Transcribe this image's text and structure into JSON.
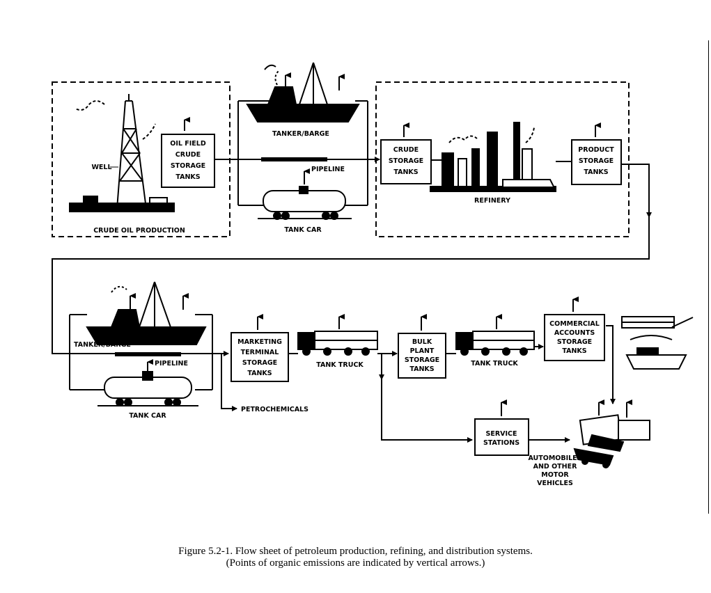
{
  "diagram": {
    "sections": {
      "crude_oil_production": "CRUDE OIL PRODUCTION",
      "refinery": "REFINERY"
    },
    "labels": {
      "well": "WELL",
      "oil_field_crude_storage_tanks": [
        "OIL FIELD",
        "CRUDE",
        "STORAGE",
        "TANKS"
      ],
      "tanker_barge_top": "TANKER/BARGE",
      "pipeline_top": "PIPELINE",
      "tank_car_top": "TANK CAR",
      "crude_storage_tanks": [
        "CRUDE",
        "STORAGE",
        "TANKS"
      ],
      "product_storage_tanks": [
        "PRODUCT",
        "STORAGE",
        "TANKS"
      ],
      "tanker_barge_bottom": "TANKER/BARGE",
      "pipeline_bottom": "PIPELINE",
      "tank_car_bottom": "TANK CAR",
      "marketing_terminal_storage_tanks": [
        "MARKETING",
        "TERMINAL",
        "STORAGE",
        "TANKS"
      ],
      "petrochemicals": "PETROCHEMICALS",
      "tank_truck_1": "TANK TRUCK",
      "bulk_plant_storage_tanks": [
        "BULK",
        "PLANT",
        "STORAGE",
        "TANKS"
      ],
      "tank_truck_2": "TANK TRUCK",
      "commercial_accounts_storage_tanks": [
        "COMMERCIAL",
        "ACCOUNTS",
        "STORAGE",
        "TANKS"
      ],
      "service_stations": [
        "SERVICE",
        "STATIONS"
      ],
      "automobiles": [
        "AUTOMOBILES",
        "AND OTHER",
        "MOTOR",
        "VEHICLES"
      ]
    }
  },
  "caption": {
    "line1": "Figure 5.2-1.  Flow sheet of petroleum production, refining, and distribution systems.",
    "line2": "(Points of organic emissions are indicated by vertical arrows.)"
  }
}
